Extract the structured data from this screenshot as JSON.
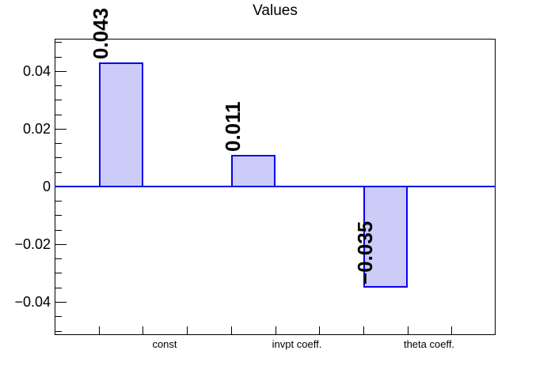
{
  "chart_data": {
    "type": "bar",
    "title": "Values",
    "categories": [
      "const",
      "invpt coeff.",
      "theta coeff."
    ],
    "values": [
      0.043,
      0.011,
      -0.035
    ],
    "value_labels": [
      "0.043",
      "0.011",
      "−0.035"
    ],
    "xlabel": "",
    "ylabel": "",
    "ylim": [
      -0.0515,
      0.0512
    ],
    "y_major_ticks": [
      {
        "v": 0.04,
        "label": "0.04"
      },
      {
        "v": 0.02,
        "label": "0.02"
      },
      {
        "v": 0.0,
        "label": "0"
      },
      {
        "v": -0.02,
        "label": "−0.02"
      },
      {
        "v": -0.04,
        "label": "−0.04"
      }
    ],
    "y_minor_step": 0.005,
    "n_bins": 10,
    "bar_bins": [
      1,
      4,
      7
    ],
    "label_bins": [
      2,
      5,
      8
    ],
    "grid": false,
    "legend": "none",
    "colors": {
      "background": "#ffffff",
      "frame": "#000000",
      "text": "#000000",
      "bar_fill": "#ccccf8",
      "bar_border": "#0c00ee",
      "zero_line": "#0c00ee"
    }
  }
}
